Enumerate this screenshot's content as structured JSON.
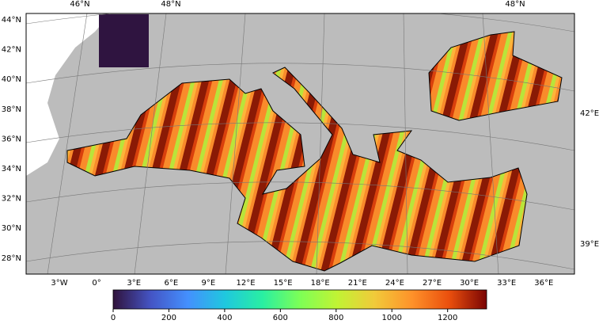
{
  "map": {
    "lat_labels": [
      "44°N",
      "42°N",
      "40°N",
      "38°N",
      "36°N",
      "34°N",
      "32°N",
      "30°N",
      "28°N"
    ],
    "lon_labels": [
      "3°W",
      "0°",
      "3°E",
      "6°E",
      "9°E",
      "12°E",
      "15°E",
      "18°E",
      "21°E",
      "24°E",
      "27°E",
      "30°E",
      "33°E",
      "36°E"
    ],
    "top_labels": [
      "46°N",
      "48°N",
      "48°N"
    ],
    "right_labels": [
      "42°E",
      "39°E"
    ]
  },
  "colorbar": {
    "lim": [
      0,
      1340
    ],
    "ticks": [
      0,
      200,
      400,
      600,
      800,
      1000,
      1200
    ]
  }
}
